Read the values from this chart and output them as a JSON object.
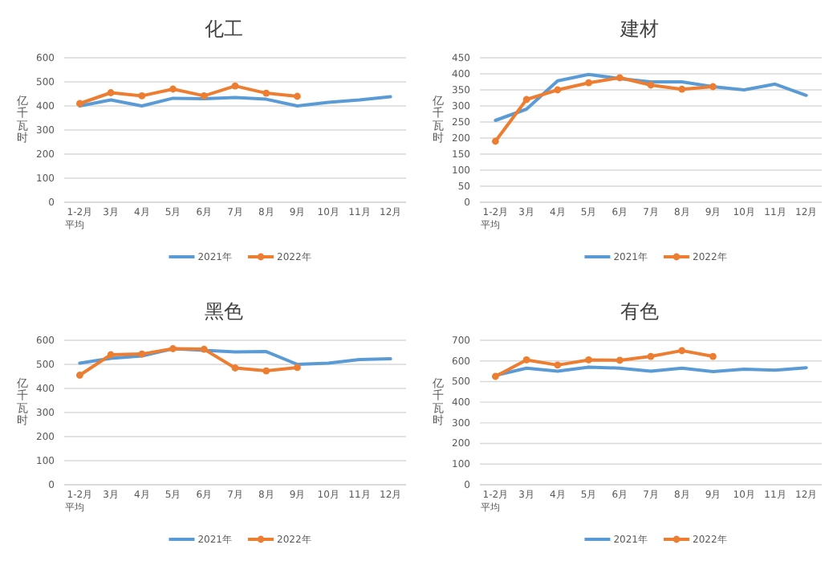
{
  "chart_data": [
    {
      "type": "line",
      "title": "化工",
      "ylabel": "亿千瓦时",
      "categories": [
        "1-2月平均",
        "3月",
        "4月",
        "5月",
        "6月",
        "7月",
        "8月",
        "9月",
        "10月",
        "11月",
        "12月"
      ],
      "series": [
        {
          "name": "2021年",
          "color": "#5b9bd5",
          "marker": "none",
          "values": [
            400,
            425,
            400,
            432,
            430,
            435,
            428,
            400,
            415,
            425,
            438
          ]
        },
        {
          "name": "2022年",
          "color": "#ed7d31",
          "marker": "circle",
          "values": [
            410,
            455,
            442,
            470,
            442,
            483,
            453,
            440,
            null,
            null,
            null
          ]
        }
      ],
      "ylim": [
        0,
        600
      ],
      "yticks": [
        0,
        100,
        200,
        300,
        400,
        500,
        600
      ],
      "grid": "y",
      "legend": "bottom"
    },
    {
      "type": "line",
      "title": "建材",
      "ylabel": "亿千瓦时",
      "categories": [
        "1-2月平均",
        "3月",
        "4月",
        "5月",
        "6月",
        "7月",
        "8月",
        "9月",
        "10月",
        "11月",
        "12月"
      ],
      "series": [
        {
          "name": "2021年",
          "color": "#5b9bd5",
          "marker": "none",
          "values": [
            255,
            290,
            378,
            398,
            385,
            375,
            375,
            360,
            350,
            368,
            333
          ]
        },
        {
          "name": "2022年",
          "color": "#ed7d31",
          "marker": "circle",
          "values": [
            190,
            320,
            350,
            372,
            388,
            365,
            352,
            360,
            null,
            null,
            null
          ]
        }
      ],
      "ylim": [
        0,
        450
      ],
      "yticks": [
        0,
        50,
        100,
        150,
        200,
        250,
        300,
        350,
        400,
        450
      ],
      "grid": "y",
      "legend": "bottom"
    },
    {
      "type": "line",
      "title": "黑色",
      "ylabel": "亿千瓦时",
      "categories": [
        "1-2月平均",
        "3月",
        "4月",
        "5月",
        "6月",
        "7月",
        "8月",
        "9月",
        "10月",
        "11月",
        "12月"
      ],
      "series": [
        {
          "name": "2021年",
          "color": "#5b9bd5",
          "marker": "none",
          "values": [
            505,
            525,
            535,
            565,
            558,
            552,
            553,
            500,
            505,
            520,
            523
          ]
        },
        {
          "name": "2022年",
          "color": "#ed7d31",
          "marker": "circle",
          "values": [
            455,
            540,
            543,
            565,
            563,
            485,
            473,
            487,
            null,
            null,
            null
          ]
        }
      ],
      "ylim": [
        0,
        600
      ],
      "yticks": [
        0,
        100,
        200,
        300,
        400,
        500,
        600
      ],
      "grid": "y",
      "legend": "bottom"
    },
    {
      "type": "line",
      "title": "有色",
      "ylabel": "亿千瓦时",
      "categories": [
        "1-2月平均",
        "3月",
        "4月",
        "5月",
        "6月",
        "7月",
        "8月",
        "9月",
        "10月",
        "11月",
        "12月"
      ],
      "series": [
        {
          "name": "2021年",
          "color": "#5b9bd5",
          "marker": "none",
          "values": [
            530,
            565,
            550,
            570,
            565,
            550,
            565,
            548,
            560,
            555,
            567
          ]
        },
        {
          "name": "2022年",
          "color": "#ed7d31",
          "marker": "circle",
          "values": [
            525,
            605,
            580,
            605,
            603,
            622,
            650,
            622,
            null,
            null,
            null
          ]
        }
      ],
      "ylim": [
        0,
        700
      ],
      "yticks": [
        0,
        100,
        200,
        300,
        400,
        500,
        600,
        700
      ],
      "grid": "y",
      "legend": "bottom"
    }
  ]
}
